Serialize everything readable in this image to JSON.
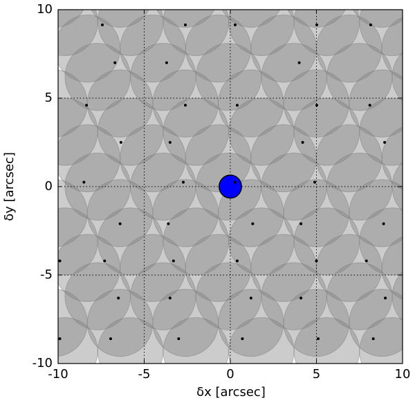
{
  "chart_data": {
    "type": "scatter",
    "xlabel": "δx [arcsec]",
    "ylabel": "δy [arcsec]",
    "xlim": [
      -10,
      10
    ],
    "ylim": [
      -10,
      10
    ],
    "xticks": [
      -10,
      -5,
      0,
      5,
      10
    ],
    "yticks": [
      -10,
      -5,
      0,
      5,
      10
    ],
    "grid": true,
    "fibers": [
      {
        "color": "#808080",
        "radius": 1.9,
        "x": [
          -9.6,
          -5.8,
          -2.0,
          1.8,
          5.6,
          9.4,
          -7.7,
          -3.9,
          -0.1,
          3.7,
          7.5,
          11.3,
          -9.6,
          -5.8,
          -2.0,
          1.8,
          5.6,
          9.4,
          -7.7,
          -3.9,
          -0.1,
          3.7,
          7.5,
          11.3,
          -9.6,
          -5.8,
          -2.0,
          1.8,
          5.6,
          9.4,
          -7.7,
          -3.9,
          -0.1,
          3.7,
          7.5,
          11.3,
          -9.6,
          -5.8,
          -2.0,
          1.8,
          5.6,
          9.4
        ],
        "y": [
          9.3,
          9.3,
          9.3,
          9.3,
          9.3,
          9.3,
          6.2,
          6.2,
          6.2,
          6.2,
          6.2,
          6.2,
          3.1,
          3.1,
          3.1,
          3.1,
          3.1,
          3.1,
          0,
          0,
          0,
          0,
          0,
          0,
          -3.1,
          -3.1,
          -3.1,
          -3.1,
          -3.1,
          -3.1,
          -6.2,
          -6.2,
          -6.2,
          -6.2,
          -6.2,
          -6.2,
          -9.3,
          -9.3,
          -9.3,
          -9.3,
          -9.3,
          -9.3
        ]
      },
      {
        "color": "#808080",
        "radius": 1.9,
        "x": [
          -10.2,
          -6.4,
          -2.6,
          1.2,
          5.0,
          8.8,
          -8.3,
          -4.5,
          -0.7,
          3.1,
          6.9,
          10.7,
          -10.2,
          -6.4,
          -2.6,
          1.2,
          5.0,
          8.8,
          -8.3,
          -4.5,
          -0.7,
          3.1,
          6.9,
          10.7,
          -10.2,
          -6.4,
          -2.6,
          1.2,
          5.0,
          8.8,
          -8.3,
          -4.5,
          -0.7,
          3.1,
          6.9,
          10.7,
          -10.2,
          -6.4,
          -2.6,
          1.2,
          5.0,
          8.8
        ],
        "y": [
          10.9,
          10.9,
          10.9,
          10.9,
          10.9,
          10.9,
          7.8,
          7.8,
          7.8,
          7.8,
          7.8,
          7.8,
          4.7,
          4.7,
          4.7,
          4.7,
          4.7,
          4.7,
          1.6,
          1.6,
          1.6,
          1.6,
          1.6,
          1.6,
          -1.5,
          -1.5,
          -1.5,
          -1.5,
          -1.5,
          -1.5,
          -4.6,
          -4.6,
          -4.6,
          -4.6,
          -4.6,
          -4.6,
          -7.7,
          -7.7,
          -7.7,
          -7.7,
          -7.7,
          -7.7
        ]
      }
    ],
    "points": {
      "color": "#000000",
      "x": [
        -7.43,
        -2.61,
        0.28,
        5.02,
        8.15,
        -6.7,
        -3.7,
        4.0,
        -8.35,
        -2.61,
        0.4,
        5.02,
        8.1,
        -6.35,
        -3.5,
        4.2,
        8.96,
        -8.5,
        -2.73,
        0.28,
        4.9,
        -6.4,
        -3.6,
        1.3,
        4.1,
        8.9,
        -9.9,
        -7.3,
        -3.3,
        0.4,
        5.0,
        7.9,
        -6.5,
        -3.5,
        1.2,
        4.1,
        9.0,
        -9.9,
        -6.95,
        -3.0,
        0.7,
        5.1,
        8.3
      ],
      "y": [
        9.14,
        9.14,
        9.14,
        9.14,
        9.14,
        7.0,
        7.0,
        7.0,
        4.6,
        4.6,
        4.6,
        4.6,
        4.6,
        2.5,
        2.5,
        2.5,
        2.5,
        0.25,
        0.25,
        0.25,
        0.25,
        -2.1,
        -2.1,
        -2.1,
        -2.1,
        -2.1,
        -4.2,
        -4.2,
        -4.2,
        -4.2,
        -4.2,
        -4.2,
        -6.3,
        -6.3,
        -6.3,
        -6.3,
        -6.3,
        -8.6,
        -8.6,
        -8.6,
        -8.6,
        -8.6,
        -8.6
      ]
    },
    "target": {
      "x": 0,
      "y": 0,
      "radius": 0.65,
      "color": "#0000ff"
    }
  }
}
